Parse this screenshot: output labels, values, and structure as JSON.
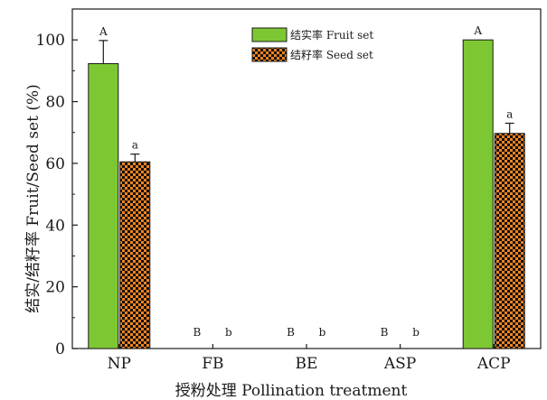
{
  "chart_data": {
    "type": "bar",
    "title": "",
    "xlabel": "授粉处理 Pollination treatment",
    "ylabel": "结实/结籽率 Fruit/Seed set (%)",
    "ylim": [
      0,
      110
    ],
    "yticks": [
      0,
      20,
      40,
      60,
      80,
      100
    ],
    "categories": [
      "NP",
      "FB",
      "BE",
      "ASP",
      "ACP"
    ],
    "series": [
      {
        "name": "结实率 Fruit set",
        "color": "#7dc832",
        "pattern": "solid",
        "values": [
          92.3,
          0,
          0,
          0,
          100
        ],
        "errors": [
          7.5,
          0,
          0,
          0,
          0
        ],
        "letters": [
          "A",
          "B",
          "B",
          "B",
          "A"
        ]
      },
      {
        "name": "结籽率 Seed set",
        "color": "#f0821e",
        "pattern": "checkerboard",
        "values": [
          60.5,
          0,
          0,
          0,
          69.7
        ],
        "errors": [
          2.5,
          0,
          0,
          0,
          3.3
        ],
        "letters": [
          "a",
          "b",
          "b",
          "b",
          "a"
        ]
      }
    ],
    "legend": "top-center",
    "grid": false
  }
}
